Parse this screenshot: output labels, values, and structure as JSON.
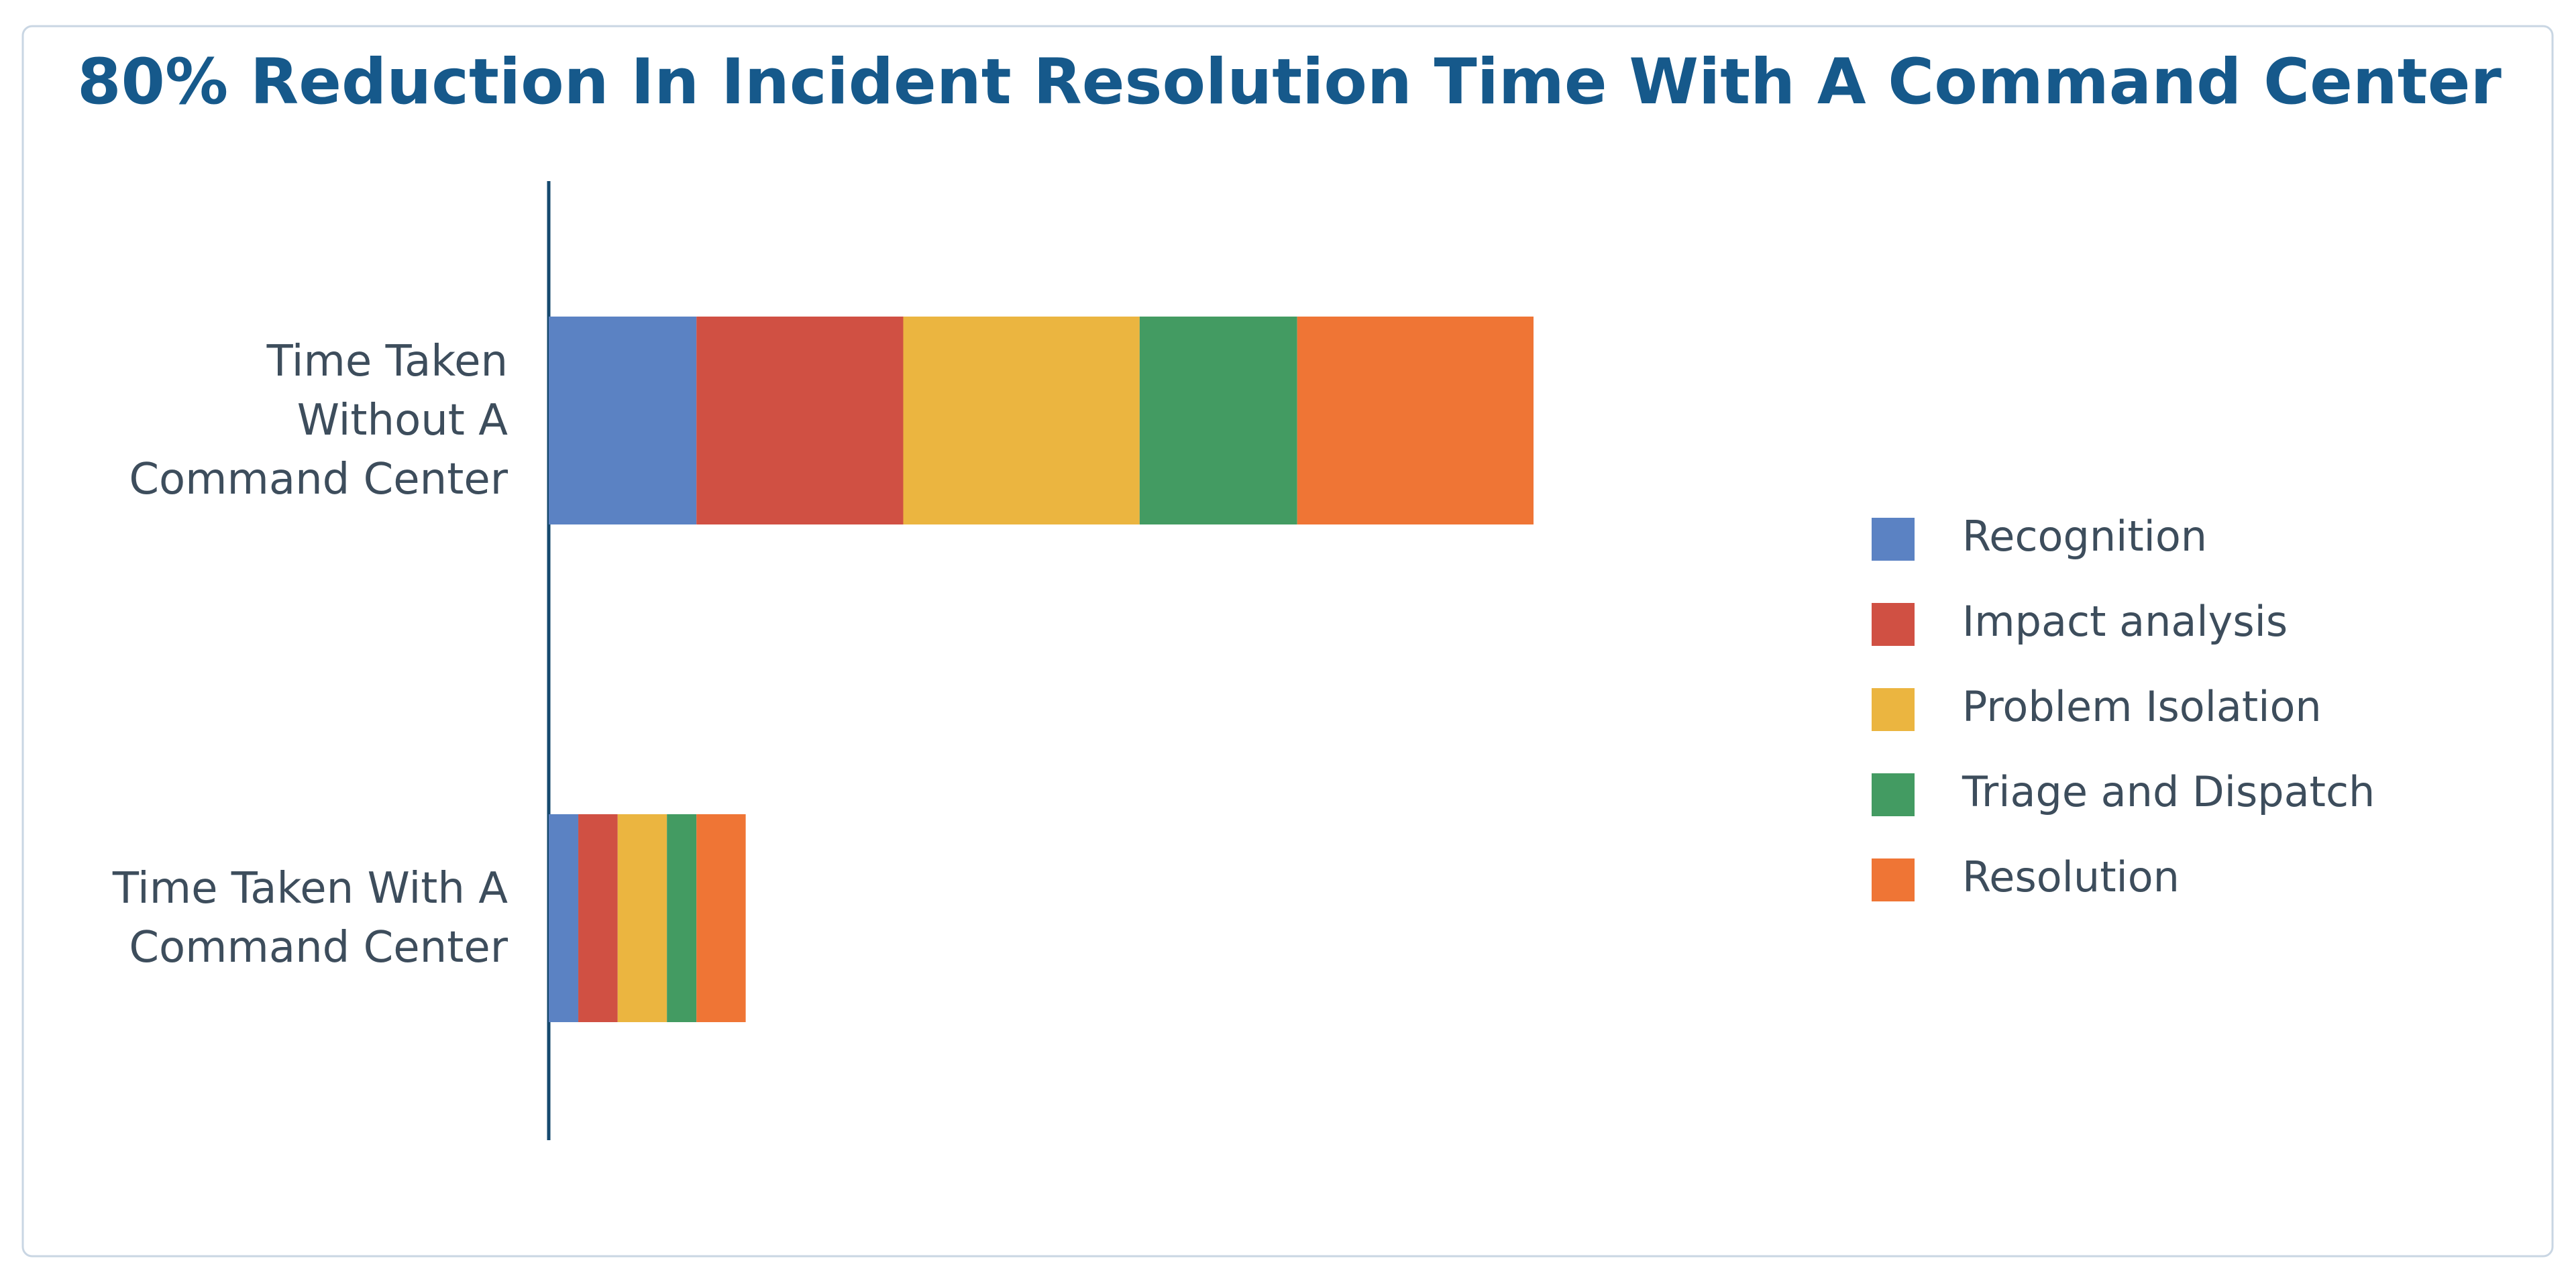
{
  "chart_data": {
    "type": "stacked-barh",
    "title": "80% Reduction In Incident Resolution Time With A Command Center",
    "categories": [
      "Time Taken\nWithout A\nCommand Center",
      "Time Taken With A\nCommand Center"
    ],
    "series": [
      {
        "name": "Recognition",
        "color": "#5b82c3",
        "values": [
          15,
          3
        ]
      },
      {
        "name": "Impact analysis",
        "color": "#d05043",
        "values": [
          21,
          4
        ]
      },
      {
        "name": "Problem Isolation",
        "color": "#ebb540",
        "values": [
          24,
          5
        ]
      },
      {
        "name": "Triage and Dispatch",
        "color": "#439b62",
        "values": [
          16,
          3
        ]
      },
      {
        "name": "Resolution",
        "color": "#ef7535",
        "values": [
          24,
          5
        ]
      }
    ],
    "xlim": [
      0,
      100
    ],
    "legend": "right"
  }
}
